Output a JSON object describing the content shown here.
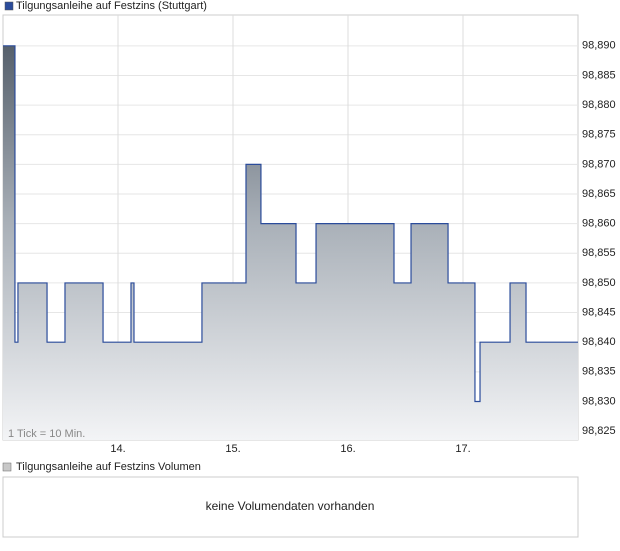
{
  "chart_data": {
    "type": "area",
    "step": "after",
    "legend": "Tilgungsanleihe auf Festzins (Stuttgart)",
    "note": "1 Tick = 10 Min.",
    "x": [
      13.0,
      13.104,
      13.13,
      13.383,
      13.539,
      13.87,
      14.113,
      14.139,
      14.73,
      15.113,
      15.243,
      15.548,
      15.722,
      16.4,
      16.548,
      16.87,
      17.104,
      17.148,
      17.409,
      17.548,
      18.0
    ],
    "series": [
      {
        "name": "Tilgungsanleihe auf Festzins (Stuttgart)",
        "color": "#2b4c9b",
        "values": [
          98.89,
          98.84,
          98.85,
          98.84,
          98.85,
          98.84,
          98.85,
          98.84,
          98.85,
          98.87,
          98.86,
          98.85,
          98.86,
          98.85,
          98.86,
          98.85,
          98.83,
          98.84,
          98.85,
          98.84,
          98.84
        ]
      }
    ],
    "xlim": [
      13,
      18
    ],
    "xticks": [
      {
        "value": 14,
        "label": "14."
      },
      {
        "value": 15,
        "label": "15."
      },
      {
        "value": 16,
        "label": "16."
      },
      {
        "value": 17,
        "label": "17."
      }
    ],
    "ylim": [
      98.8235,
      98.8952
    ],
    "yticks": [
      {
        "value": 98.825,
        "label": "98,825"
      },
      {
        "value": 98.83,
        "label": "98,830"
      },
      {
        "value": 98.835,
        "label": "98,835"
      },
      {
        "value": 98.84,
        "label": "98,840"
      },
      {
        "value": 98.845,
        "label": "98,845"
      },
      {
        "value": 98.85,
        "label": "98,850"
      },
      {
        "value": 98.855,
        "label": "98,855"
      },
      {
        "value": 98.86,
        "label": "98,860"
      },
      {
        "value": 98.865,
        "label": "98,865"
      },
      {
        "value": 98.87,
        "label": "98,870"
      },
      {
        "value": 98.875,
        "label": "98,875"
      },
      {
        "value": 98.88,
        "label": "98,880"
      },
      {
        "value": 98.885,
        "label": "98,885"
      },
      {
        "value": 98.89,
        "label": "98,890"
      }
    ],
    "grid": true
  },
  "volume_panel": {
    "legend": "Tilgungsanleihe auf Festzins Volumen",
    "legend_color": "#c8c8c8",
    "message": "keine Volumendaten vorhanden"
  }
}
